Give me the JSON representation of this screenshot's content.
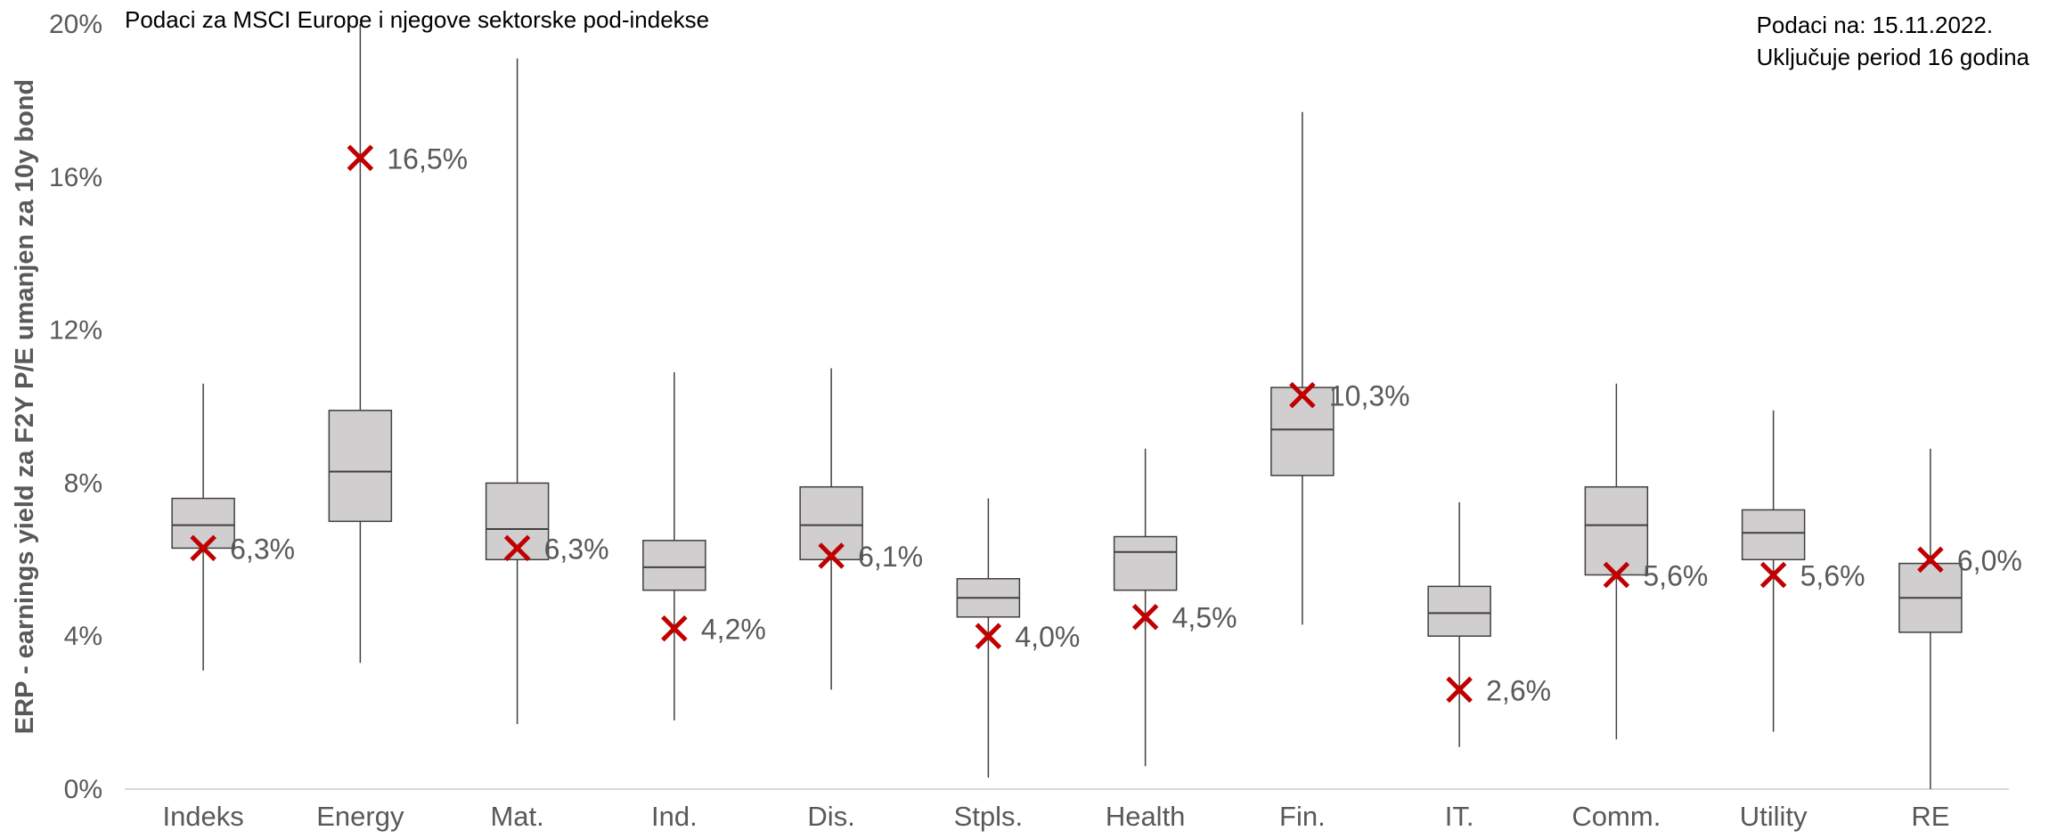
{
  "notes": {
    "left": "Podaci za MSCI Europe i njegove sektorske pod-indekse",
    "right_line1": "Podaci na: 15.11.2022.",
    "right_line2": "Uključuje period 16 godina"
  },
  "colors": {
    "box_fill": "#d0cecf",
    "box_stroke": "#404040",
    "whisker": "#404040",
    "marker": "#c00000",
    "axis_text": "#595959",
    "baseline": "#d9d9d9"
  },
  "chart_data": {
    "type": "boxplot",
    "ylabel": "ERP - earnings yield za F2Y P/E umanjen za 10y bond",
    "ylim": [
      0,
      20
    ],
    "yticks": [
      0,
      4,
      8,
      12,
      16,
      20
    ],
    "ytick_labels": [
      "0%",
      "4%",
      "8%",
      "12%",
      "16%",
      "20%"
    ],
    "grid": false,
    "categories": [
      "Indeks",
      "Energy",
      "Mat.",
      "Ind.",
      "Dis.",
      "Stpls.",
      "Health",
      "Fin.",
      "IT.",
      "Comm.",
      "Utility",
      "RE"
    ],
    "boxes": [
      {
        "min": 3.1,
        "q1": 6.3,
        "median": 6.9,
        "q3": 7.6,
        "max": 10.6
      },
      {
        "min": 3.3,
        "q1": 7.0,
        "median": 8.3,
        "q3": 9.9,
        "max": 20.0
      },
      {
        "min": 1.7,
        "q1": 6.0,
        "median": 6.8,
        "q3": 8.0,
        "max": 19.1
      },
      {
        "min": 1.8,
        "q1": 5.2,
        "median": 5.8,
        "q3": 6.5,
        "max": 10.9
      },
      {
        "min": 2.6,
        "q1": 6.0,
        "median": 6.9,
        "q3": 7.9,
        "max": 11.0
      },
      {
        "min": 0.3,
        "q1": 4.5,
        "median": 5.0,
        "q3": 5.5,
        "max": 7.6
      },
      {
        "min": 0.6,
        "q1": 5.2,
        "median": 6.2,
        "q3": 6.6,
        "max": 8.9
      },
      {
        "min": 4.3,
        "q1": 8.2,
        "median": 9.4,
        "q3": 10.5,
        "max": 17.7
      },
      {
        "min": 1.1,
        "q1": 4.0,
        "median": 4.6,
        "q3": 5.3,
        "max": 7.5
      },
      {
        "min": 1.3,
        "q1": 5.6,
        "median": 6.9,
        "q3": 7.9,
        "max": 10.6
      },
      {
        "min": 1.5,
        "q1": 6.0,
        "median": 6.7,
        "q3": 7.3,
        "max": 9.9
      },
      {
        "min": 0.0,
        "q1": 4.1,
        "median": 5.0,
        "q3": 5.9,
        "max": 8.9
      }
    ],
    "current": [
      6.3,
      16.5,
      6.3,
      4.2,
      6.1,
      4.0,
      4.5,
      10.3,
      2.6,
      5.6,
      5.6,
      6.0
    ],
    "current_labels": [
      "6,3%",
      "16,5%",
      "6,3%",
      "4,2%",
      "6,1%",
      "4,0%",
      "4,5%",
      "10,3%",
      "2,6%",
      "5,6%",
      "5,6%",
      "6,0%"
    ]
  }
}
